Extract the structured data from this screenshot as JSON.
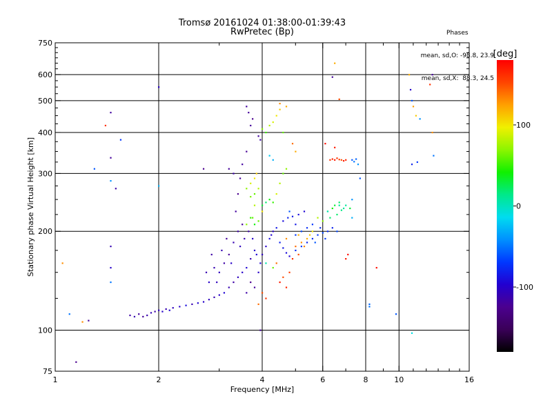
{
  "header": {
    "title_line1": "Tromsø 20161024 01:38:00-01:39:43",
    "title_line2": "RwPretec (Bp)"
  },
  "stats": {
    "heading": "Phases",
    "line_o": "mean, sd,O: -98.8, 23.9",
    "line_x": "mean, sd,X:  88.3, 24.5"
  },
  "chart_data": {
    "type": "scatter",
    "xlabel": "Frequency [MHz]",
    "ylabel": "Stationary phase Virtual Height [km]",
    "x_scale": "log",
    "y_scale": "log",
    "xlim": [
      1,
      16
    ],
    "ylim": [
      75,
      750
    ],
    "x_ticks": [
      1,
      2,
      4,
      6,
      8,
      10,
      16
    ],
    "x_tick_labels": [
      "1",
      "2",
      "4",
      "6",
      "8",
      "10",
      "16"
    ],
    "x_minor_ticks": [
      3,
      5,
      7,
      9,
      11,
      12,
      13,
      14,
      15
    ],
    "y_ticks": [
      75,
      100,
      200,
      300,
      400,
      500,
      600,
      750
    ],
    "y_tick_labels": [
      "75",
      "100",
      "200",
      "300",
      "400",
      "500",
      "600",
      "750"
    ],
    "y_minor_ticks": [
      125,
      150,
      175,
      225,
      250,
      275,
      325,
      350,
      375,
      425,
      450,
      475,
      525,
      550,
      575,
      625,
      650,
      675,
      700,
      725
    ],
    "grid": true,
    "grid_x": [
      2,
      4,
      6,
      8,
      10
    ],
    "grid_y": [
      100,
      200,
      300,
      400,
      500,
      600
    ],
    "colorbar": {
      "label": "[deg]",
      "range": [
        -180,
        180
      ],
      "tick_values": [
        100,
        0,
        -100
      ],
      "tick_labels": [
        "100",
        "0",
        "-100"
      ],
      "colormap": [
        "#000000",
        "#3a0058",
        "#4b008f",
        "#2200d0",
        "#0038ff",
        "#0090ff",
        "#00dcf0",
        "#00e98a",
        "#10f000",
        "#8cf500",
        "#f0f000",
        "#ffa000",
        "#ff4500",
        "#ff0000"
      ]
    },
    "series": [
      {
        "points": [
          [
            1.65,
            111,
            -115
          ],
          [
            1.7,
            110,
            -110
          ],
          [
            1.75,
            112,
            -118
          ],
          [
            1.8,
            110,
            -120
          ],
          [
            1.85,
            111,
            -112
          ],
          [
            1.9,
            113,
            -108
          ],
          [
            1.95,
            114,
            -115
          ],
          [
            2.0,
            115,
            -105
          ],
          [
            2.05,
            114,
            -100
          ],
          [
            2.1,
            116,
            -110
          ],
          [
            2.15,
            115,
            -95
          ],
          [
            2.2,
            117,
            -105
          ],
          [
            2.3,
            118,
            -100
          ],
          [
            2.4,
            119,
            -90
          ],
          [
            2.5,
            120,
            -110
          ],
          [
            2.6,
            121,
            -95
          ],
          [
            2.7,
            122,
            -100
          ],
          [
            2.8,
            124,
            -105
          ],
          [
            2.9,
            126,
            -110
          ],
          [
            3.0,
            128,
            -100
          ],
          [
            3.1,
            130,
            -95
          ],
          [
            3.2,
            135,
            -110
          ],
          [
            3.3,
            140,
            -115
          ],
          [
            3.4,
            145,
            -105
          ],
          [
            3.5,
            150,
            -100
          ],
          [
            3.6,
            155,
            -95
          ],
          [
            3.7,
            165,
            -110
          ],
          [
            3.8,
            175,
            -100
          ],
          [
            3.1,
            160,
            -115
          ],
          [
            3.2,
            170,
            -120
          ],
          [
            3.3,
            185,
            -110
          ],
          [
            3.0,
            150,
            -105
          ],
          [
            2.8,
            140,
            -100
          ],
          [
            2.9,
            155,
            -110
          ],
          [
            3.4,
            200,
            -115
          ],
          [
            3.5,
            210,
            -120
          ],
          [
            3.35,
            230,
            -118
          ],
          [
            3.4,
            260,
            -125
          ],
          [
            3.45,
            290,
            -120
          ],
          [
            3.5,
            320,
            -118
          ],
          [
            3.3,
            300,
            -115
          ],
          [
            3.6,
            350,
            -122
          ],
          [
            3.7,
            420,
            -120
          ],
          [
            3.75,
            440,
            -125
          ],
          [
            3.9,
            390,
            -118
          ],
          [
            3.95,
            380,
            -115
          ],
          [
            3.2,
            310,
            -120
          ],
          [
            2.7,
            310,
            -125
          ],
          [
            3.65,
            460,
            -120
          ],
          [
            3.6,
            480,
            -118
          ],
          [
            3.7,
            140,
            -125
          ],
          [
            3.8,
            135,
            -120
          ],
          [
            3.6,
            130,
            -115
          ],
          [
            1.45,
            180,
            -110
          ],
          [
            1.25,
            107,
            -120
          ],
          [
            1.15,
            80,
            -125
          ],
          [
            1.45,
            155,
            -100
          ],
          [
            1.5,
            270,
            -115
          ],
          [
            1.45,
            335,
            -120
          ],
          [
            1.45,
            460,
            -118
          ],
          [
            2.0,
            550,
            -100
          ],
          [
            3.9,
            150,
            -100
          ],
          [
            3.95,
            160,
            -95
          ],
          [
            4.0,
            170,
            -105
          ],
          [
            4.1,
            180,
            -100
          ],
          [
            4.2,
            190,
            -90
          ],
          [
            4.25,
            195,
            -95
          ],
          [
            4.3,
            200,
            -100
          ],
          [
            4.4,
            205,
            -85
          ],
          [
            4.6,
            215,
            -90
          ],
          [
            4.75,
            220,
            -80
          ],
          [
            4.9,
            222,
            -85
          ],
          [
            5.1,
            225,
            -90
          ],
          [
            5.3,
            230,
            -95
          ],
          [
            4.5,
            185,
            -80
          ],
          [
            4.6,
            178,
            -85
          ],
          [
            4.7,
            172,
            -90
          ],
          [
            4.8,
            168,
            -95
          ],
          [
            5.0,
            175,
            -75
          ],
          [
            5.2,
            180,
            -70
          ],
          [
            5.4,
            185,
            -80
          ],
          [
            5.6,
            190,
            -75
          ],
          [
            5.8,
            195,
            -70
          ],
          [
            6.0,
            198,
            -65
          ],
          [
            6.2,
            200,
            -75
          ],
          [
            6.4,
            205,
            -80
          ],
          [
            5.0,
            195,
            -70
          ],
          [
            5.2,
            200,
            -65
          ],
          [
            5.4,
            205,
            -75
          ],
          [
            5.6,
            210,
            -70
          ],
          [
            4.2,
            340,
            -20
          ],
          [
            4.3,
            330,
            -30
          ],
          [
            4.1,
            160,
            5
          ],
          [
            4.3,
            155,
            60
          ],
          [
            4.0,
            230,
            100
          ],
          [
            3.8,
            240,
            80
          ],
          [
            3.75,
            220,
            60
          ],
          [
            3.8,
            210,
            40
          ],
          [
            3.9,
            215,
            60
          ],
          [
            3.6,
            210,
            70
          ],
          [
            3.7,
            220,
            50
          ],
          [
            3.8,
            260,
            60
          ],
          [
            3.9,
            270,
            80
          ],
          [
            3.7,
            280,
            90
          ],
          [
            3.8,
            290,
            100
          ],
          [
            3.85,
            300,
            110
          ],
          [
            3.6,
            270,
            70
          ],
          [
            3.7,
            255,
            65
          ],
          [
            4.0,
            240,
            30
          ],
          [
            4.1,
            245,
            20
          ],
          [
            4.2,
            250,
            40
          ],
          [
            4.3,
            245,
            50
          ],
          [
            4.4,
            260,
            90
          ],
          [
            4.5,
            280,
            80
          ],
          [
            4.6,
            300,
            60
          ],
          [
            4.7,
            310,
            70
          ],
          [
            4.3,
            430,
            90
          ],
          [
            4.4,
            450,
            100
          ],
          [
            4.5,
            470,
            110
          ],
          [
            4.2,
            420,
            80
          ],
          [
            4.6,
            400,
            60
          ],
          [
            4.0,
            410,
            70
          ],
          [
            4.1,
            400,
            50
          ],
          [
            4.7,
            480,
            120
          ],
          [
            4.5,
            490,
            130
          ],
          [
            4.9,
            370,
            140
          ],
          [
            5.0,
            350,
            120
          ],
          [
            4.0,
            130,
            150
          ],
          [
            4.1,
            125,
            160
          ],
          [
            3.9,
            120,
            140
          ],
          [
            4.5,
            140,
            170
          ],
          [
            4.6,
            145,
            150
          ],
          [
            4.7,
            135,
            165
          ],
          [
            4.8,
            150,
            155
          ],
          [
            5.0,
            180,
            140
          ],
          [
            5.2,
            185,
            130
          ],
          [
            5.4,
            190,
            120
          ],
          [
            5.5,
            195,
            110
          ],
          [
            5.1,
            170,
            150
          ],
          [
            4.9,
            165,
            160
          ],
          [
            5.3,
            180,
            135
          ],
          [
            5.6,
            200,
            100
          ],
          [
            5.8,
            220,
            80
          ],
          [
            6.0,
            215,
            70
          ],
          [
            6.2,
            230,
            60
          ],
          [
            6.4,
            235,
            40
          ],
          [
            6.5,
            240,
            30
          ],
          [
            6.7,
            245,
            20
          ],
          [
            6.9,
            235,
            10
          ],
          [
            6.6,
            225,
            20
          ],
          [
            6.8,
            232,
            15
          ],
          [
            7.0,
            240,
            10
          ],
          [
            7.2,
            235,
            30
          ],
          [
            6.3,
            330,
            160
          ],
          [
            6.4,
            332,
            165
          ],
          [
            6.5,
            330,
            170
          ],
          [
            6.6,
            334,
            160
          ],
          [
            6.7,
            331,
            155
          ],
          [
            6.8,
            330,
            150
          ],
          [
            6.9,
            328,
            170
          ],
          [
            7.0,
            330,
            165
          ],
          [
            7.3,
            330,
            -60
          ],
          [
            7.4,
            326,
            -50
          ],
          [
            7.5,
            332,
            -55
          ],
          [
            7.6,
            320,
            -40
          ],
          [
            7.7,
            290,
            -60
          ],
          [
            6.1,
            370,
            175
          ],
          [
            6.5,
            360,
            170
          ],
          [
            6.2,
            230,
            0
          ],
          [
            6.3,
            220,
            20
          ],
          [
            6.7,
            240,
            10
          ],
          [
            7.1,
            170,
            175
          ],
          [
            7.0,
            165,
            170
          ],
          [
            6.4,
            590,
            -120
          ],
          [
            6.5,
            650,
            120
          ],
          [
            6.7,
            505,
            150
          ],
          [
            7.3,
            250,
            -40
          ],
          [
            7.3,
            220,
            -30
          ],
          [
            8.6,
            155,
            175
          ],
          [
            8.2,
            118,
            -50
          ],
          [
            8.2,
            120,
            -55
          ],
          [
            9.8,
            112,
            -60
          ],
          [
            10.9,
            98,
            -10
          ],
          [
            10.8,
            540,
            -100
          ],
          [
            10.7,
            600,
            120
          ],
          [
            11.0,
            480,
            125
          ],
          [
            11.2,
            450,
            110
          ],
          [
            11.5,
            440,
            -40
          ],
          [
            12.3,
            560,
            160
          ],
          [
            12.5,
            600,
            -120
          ],
          [
            12.5,
            400,
            130
          ],
          [
            12.6,
            340,
            -50
          ],
          [
            10.9,
            320,
            -80
          ],
          [
            11.3,
            325,
            -70
          ],
          [
            10.9,
            500,
            -60
          ],
          [
            1.05,
            160,
            130
          ],
          [
            1.1,
            112,
            -50
          ],
          [
            1.2,
            106,
            130
          ],
          [
            1.3,
            310,
            -60
          ],
          [
            1.4,
            420,
            160
          ],
          [
            1.55,
            380,
            -70
          ],
          [
            1.45,
            285,
            -40
          ],
          [
            1.45,
            140,
            -50
          ],
          [
            2.0,
            275,
            -30
          ],
          [
            3.95,
            100,
            -120
          ],
          [
            2.75,
            150,
            -110
          ],
          [
            2.85,
            170,
            -115
          ],
          [
            2.95,
            140,
            -105
          ],
          [
            3.05,
            175,
            -110
          ],
          [
            3.15,
            190,
            -120
          ],
          [
            3.25,
            160,
            -100
          ],
          [
            3.45,
            180,
            -105
          ],
          [
            3.55,
            190,
            -110
          ],
          [
            3.65,
            200,
            -115
          ],
          [
            3.75,
            190,
            -100
          ],
          [
            3.85,
            170,
            -95
          ],
          [
            4.4,
            160,
            140
          ],
          [
            4.7,
            190,
            130
          ],
          [
            5.1,
            195,
            120
          ],
          [
            5.7,
            185,
            -60
          ],
          [
            6.1,
            190,
            -70
          ],
          [
            5.9,
            205,
            -75
          ],
          [
            6.6,
            200,
            -65
          ],
          [
            5.0,
            210,
            -85
          ],
          [
            4.8,
            230,
            -60
          ]
        ]
      }
    ]
  }
}
